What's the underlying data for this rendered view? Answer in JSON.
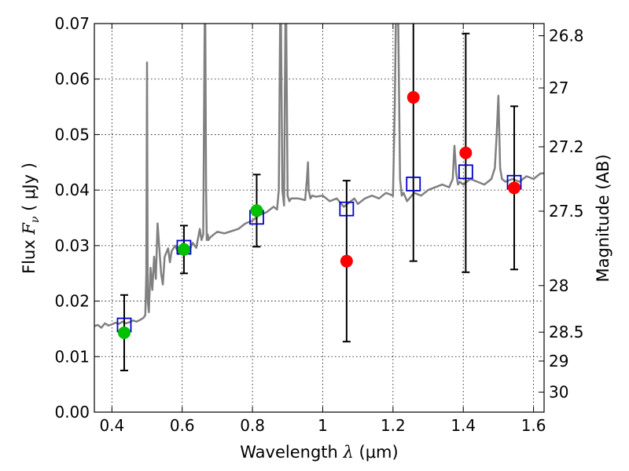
{
  "chart_data": {
    "type": "scatter",
    "xlabel": {
      "pre": "Wavelength ",
      "sym": "λ",
      "post": " (μm)"
    },
    "ylabel": {
      "pre": "Flux ",
      "sym": "F",
      "sub": "ν",
      "post": " ( μJy )"
    },
    "ylabel_right": "Magnitude (AB)",
    "xlim": [
      0.35,
      1.63
    ],
    "ylim": [
      0.0,
      0.07
    ],
    "grid": true,
    "x_ticks": [
      0.4,
      0.6,
      0.8,
      1.0,
      1.2,
      1.4,
      1.6
    ],
    "x_tick_labels": [
      "0.4",
      "0.6",
      "0.8",
      "1",
      "1.2",
      "1.4",
      "1.6"
    ],
    "y_ticks": [
      0.0,
      0.01,
      0.02,
      0.03,
      0.04,
      0.05,
      0.06,
      0.07
    ],
    "y_tick_labels": [
      "0.00",
      "0.01",
      "0.02",
      "0.03",
      "0.04",
      "0.05",
      "0.06",
      "0.07"
    ],
    "right_ticks": [
      {
        "label": "26.8",
        "flux": 0.0678
      },
      {
        "label": "27",
        "flux": 0.0584
      },
      {
        "label": "27.2",
        "flux": 0.0478
      },
      {
        "label": "27.5",
        "flux": 0.0362
      },
      {
        "label": "28",
        "flux": 0.0228
      },
      {
        "label": "28.5",
        "flux": 0.0144
      },
      {
        "label": "29",
        "flux": 0.0092
      },
      {
        "label": "30",
        "flux": 0.0036
      }
    ],
    "colors": {
      "sed": "#808080",
      "observed_hst": "#00c000",
      "observed_ir": "#ff0000",
      "model": "#0000cc",
      "errorbar": "#000000"
    },
    "sed_model": {
      "x": [
        0.35,
        0.36,
        0.37,
        0.38,
        0.39,
        0.4,
        0.41,
        0.42,
        0.43,
        0.44,
        0.45,
        0.46,
        0.47,
        0.48,
        0.49,
        0.495,
        0.498,
        0.5,
        0.502,
        0.505,
        0.51,
        0.515,
        0.52,
        0.525,
        0.53,
        0.54,
        0.545,
        0.55,
        0.56,
        0.565,
        0.57,
        0.58,
        0.59,
        0.6,
        0.61,
        0.62,
        0.63,
        0.64,
        0.65,
        0.655,
        0.66,
        0.665,
        0.668,
        0.67,
        0.673,
        0.675,
        0.68,
        0.69,
        0.7,
        0.72,
        0.74,
        0.76,
        0.78,
        0.8,
        0.82,
        0.84,
        0.86,
        0.87,
        0.875,
        0.88,
        0.885,
        0.89,
        0.895,
        0.9,
        0.905,
        0.91,
        0.93,
        0.95,
        0.955,
        0.958,
        0.96,
        0.965,
        0.97,
        0.98,
        1.0,
        1.02,
        1.04,
        1.06,
        1.08,
        1.09,
        1.1,
        1.12,
        1.14,
        1.16,
        1.18,
        1.2,
        1.205,
        1.21,
        1.215,
        1.22,
        1.225,
        1.23,
        1.24,
        1.26,
        1.28,
        1.3,
        1.32,
        1.34,
        1.36,
        1.37,
        1.375,
        1.38,
        1.385,
        1.39,
        1.4,
        1.42,
        1.44,
        1.46,
        1.48,
        1.49,
        1.495,
        1.5,
        1.505,
        1.51,
        1.52,
        1.54,
        1.56,
        1.58,
        1.6,
        1.62,
        1.63
      ],
      "y": [
        0.0155,
        0.0157,
        0.0152,
        0.016,
        0.0156,
        0.0158,
        0.0161,
        0.0159,
        0.0163,
        0.016,
        0.0162,
        0.0165,
        0.0163,
        0.0166,
        0.017,
        0.0175,
        0.025,
        0.063,
        0.02,
        0.018,
        0.026,
        0.022,
        0.028,
        0.024,
        0.034,
        0.025,
        0.023,
        0.028,
        0.0295,
        0.027,
        0.029,
        0.03,
        0.0285,
        0.0295,
        0.03,
        0.029,
        0.0305,
        0.0296,
        0.033,
        0.031,
        0.032,
        0.08,
        0.04,
        0.031,
        0.032,
        0.031,
        0.0315,
        0.032,
        0.0325,
        0.0322,
        0.0326,
        0.033,
        0.034,
        0.0345,
        0.0355,
        0.036,
        0.037,
        0.0365,
        0.04,
        0.08,
        0.04,
        0.0372,
        0.08,
        0.039,
        0.038,
        0.0385,
        0.0385,
        0.0382,
        0.042,
        0.045,
        0.04,
        0.0385,
        0.039,
        0.0388,
        0.039,
        0.038,
        0.0385,
        0.037,
        0.038,
        0.0385,
        0.0375,
        0.0385,
        0.039,
        0.0385,
        0.0395,
        0.039,
        0.055,
        0.08,
        0.07,
        0.042,
        0.039,
        0.0395,
        0.038,
        0.0395,
        0.039,
        0.04,
        0.0405,
        0.041,
        0.0405,
        0.042,
        0.048,
        0.043,
        0.041,
        0.0415,
        0.041,
        0.042,
        0.0415,
        0.041,
        0.042,
        0.044,
        0.05,
        0.057,
        0.044,
        0.042,
        0.0415,
        0.042,
        0.0415,
        0.0425,
        0.042,
        0.043,
        0.043
      ]
    },
    "series": [
      {
        "marker": "circle",
        "color_key": "observed_hst",
        "x": [
          0.435,
          0.605,
          0.812
        ],
        "y": [
          0.0143,
          0.0293,
          0.0363
        ],
        "yerr": [
          0.0068,
          0.0043,
          0.0065
        ]
      },
      {
        "marker": "circle",
        "color_key": "observed_ir",
        "x": [
          1.068,
          1.258,
          1.407,
          1.545
        ],
        "y": [
          0.0272,
          0.0567,
          0.0467,
          0.0404
        ],
        "yerr": [
          0.0145,
          0.0295,
          0.0215,
          0.0147
        ]
      },
      {
        "marker": "square",
        "color_key": "model",
        "x": [
          0.435,
          0.605,
          0.812,
          1.068,
          1.258,
          1.407,
          1.545
        ],
        "y": [
          0.0157,
          0.0297,
          0.0351,
          0.0366,
          0.0411,
          0.0433,
          0.0414
        ]
      }
    ]
  }
}
